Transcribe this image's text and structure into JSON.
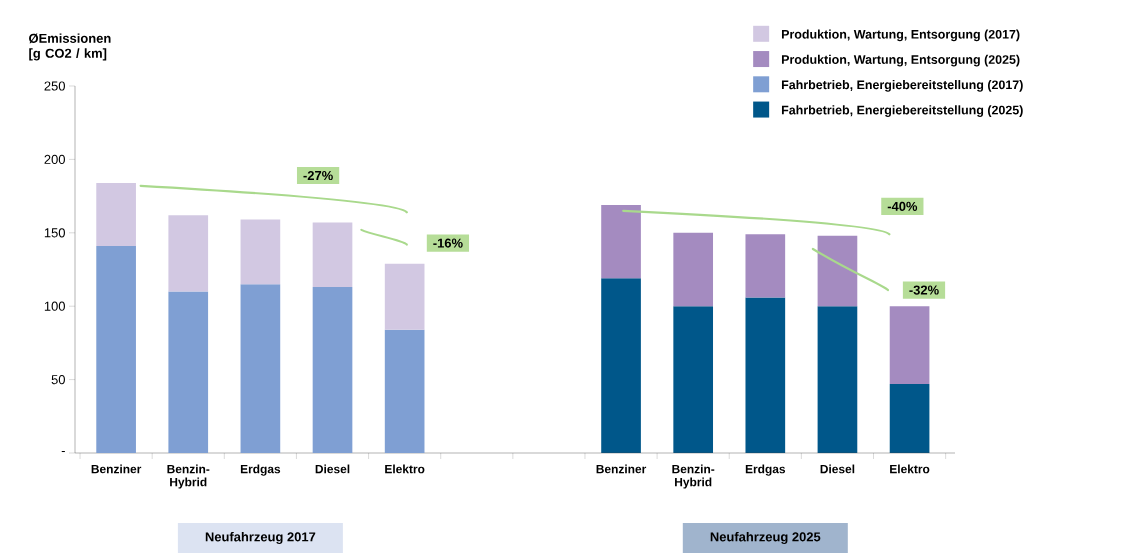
{
  "chart_data": {
    "type": "bar",
    "stacked": true,
    "ylabel": "ØEmissionen [g CO2 / km]",
    "categories": [
      "Benziner",
      "Benzin-Hybrid",
      "Erdgas",
      "Diesel",
      "Elektro",
      null,
      null,
      "Benziner",
      "Benzin-Hybrid",
      "Erdgas",
      "Diesel",
      "Elektro"
    ],
    "series": [
      {
        "name": "Fahrbetrieb, Energiebereitstellung (2017)",
        "color": "#7f9fd3",
        "values": [
          141,
          110,
          115,
          113,
          84,
          null,
          null,
          null,
          null,
          null,
          null,
          null
        ]
      },
      {
        "name": "Produktion, Wartung, Entsorgung (2017)",
        "color": "#d2c8e2",
        "values": [
          43,
          52,
          44,
          44,
          45,
          null,
          null,
          null,
          null,
          null,
          null,
          null
        ]
      },
      {
        "name": "Fahrbetrieb, Energiebereitstellung (2025)",
        "color": "#00578a",
        "values": [
          null,
          null,
          null,
          null,
          null,
          null,
          null,
          119,
          100,
          106,
          100,
          47
        ]
      },
      {
        "name": "Produktion, Wartung, Entsorgung (2025)",
        "color": "#a48bc0",
        "values": [
          null,
          null,
          null,
          null,
          null,
          null,
          null,
          50,
          50,
          43,
          48,
          53
        ]
      }
    ],
    "ylim": [
      0,
      250
    ],
    "yticks": [
      {
        "value": 0,
        "label": "-"
      },
      50,
      100,
      150,
      200,
      250
    ],
    "legend": "top right",
    "annotations": [
      "-27%",
      "-16%",
      "-40%",
      "-32%",
      "Neufahrzeug 2017",
      "Neufahrzeug 2025"
    ]
  }
}
